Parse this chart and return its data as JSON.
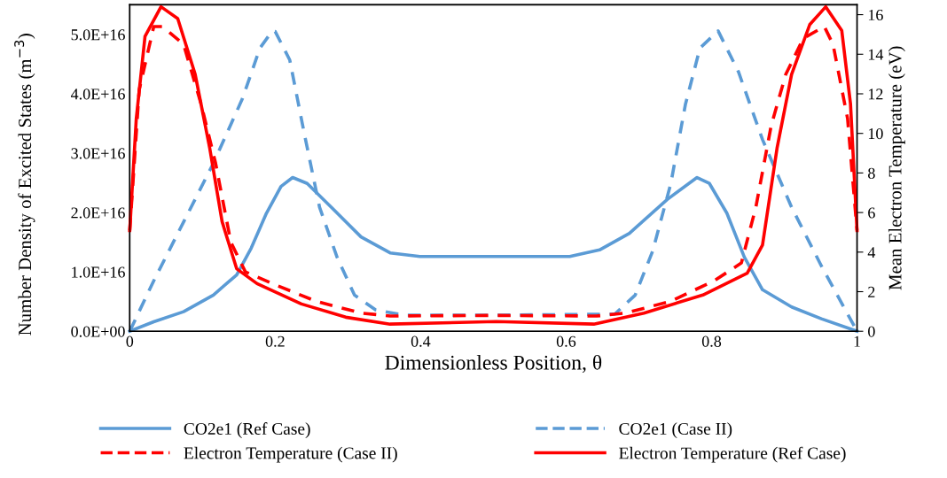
{
  "chart_data": {
    "type": "line",
    "xlabel": "Dimensionless Position, θ",
    "ylabel": "Number Density of Excited States (m$^{−3}$)",
    "y2label": "Mean Electron Temperature (eV)",
    "xlim": [
      0,
      1
    ],
    "xticks": [
      0,
      0.2,
      0.4,
      0.6,
      0.8,
      1
    ],
    "ylim": [
      0,
      5.5e+16
    ],
    "yticks": [
      {
        "value": 0,
        "label": "0.0E+00"
      },
      {
        "value": 1e+16,
        "label": "1.0E+16"
      },
      {
        "value": 2e+16,
        "label": "2.0E+16"
      },
      {
        "value": 3e+16,
        "label": "3.0E+16"
      },
      {
        "value": 4e+16,
        "label": "4.0E+16"
      },
      {
        "value": 5e+16,
        "label": "5.0E+16"
      }
    ],
    "y2lim": [
      0,
      16.5
    ],
    "y2ticks": [
      0,
      2,
      4,
      6,
      8,
      10,
      12,
      14,
      16
    ],
    "grid": false,
    "legend": "bottom",
    "marker": "none",
    "series": [
      {
        "name": "CO2e1 (Ref Case)",
        "color": "#5b9bd5",
        "line_style": "solid",
        "x": [
          0,
          0.033,
          0.074,
          0.115,
          0.147,
          0.167,
          0.188,
          0.208,
          0.224,
          0.244,
          0.277,
          0.318,
          0.358,
          0.399,
          0.504,
          0.605,
          0.646,
          0.687,
          0.739,
          0.78,
          0.797,
          0.821,
          0.845,
          0.87,
          0.91,
          0.951,
          1
        ],
        "values": [
          0,
          1600000000000000.0,
          3300000000000000.0,
          6100000000000000.0,
          9500000000000000.0,
          1.4e+16,
          1.99e+16,
          2.44e+16,
          2.59e+16,
          2.49e+16,
          2.09e+16,
          1.59e+16,
          1.32e+16,
          1.26e+16,
          1.26e+16,
          1.26e+16,
          1.37e+16,
          1.65e+16,
          2.22e+16,
          2.59e+16,
          2.49e+16,
          1.99e+16,
          1.25e+16,
          7000000000000000.0,
          4100000000000000.0,
          2100000000000000.0,
          0
        ]
      },
      {
        "name": "CO2e1 (Case II)",
        "color": "#5b9bd5",
        "line_style": "dashed",
        "x": [
          0,
          0.033,
          0.074,
          0.115,
          0.155,
          0.179,
          0.196,
          0.2,
          0.22,
          0.24,
          0.261,
          0.285,
          0.309,
          0.338,
          0.378,
          0.5,
          0.667,
          0.695,
          0.719,
          0.744,
          0.764,
          0.784,
          0.809,
          0.837,
          0.87,
          0.91,
          0.951,
          1
        ],
        "values": [
          0,
          8500000000000000.0,
          1.84e+16,
          2.83e+16,
          3.92e+16,
          4.77e+16,
          5.06e+16,
          5.05e+16,
          4.57e+16,
          3.33e+16,
          2.09e+16,
          1.25e+16,
          6100000000000000.0,
          3600000000000000.0,
          2700000000000000.0,
          2700000000000000.0,
          2900000000000000.0,
          6100000000000000.0,
          1.35e+16,
          2.49e+16,
          3.82e+16,
          4.77e+16,
          5.06e+16,
          4.37e+16,
          3.23e+16,
          2.09e+16,
          1.1e+16,
          0
        ]
      },
      {
        "name": "Electron Temperature (Case II)",
        "color": "#ff0000",
        "line_style": "dashed",
        "axis": "y2",
        "x": [
          0,
          0.013,
          0.033,
          0.045,
          0.074,
          0.098,
          0.118,
          0.139,
          0.159,
          0.196,
          0.256,
          0.318,
          0.358,
          0.5,
          0.642,
          0.682,
          0.744,
          0.804,
          0.841,
          0.861,
          0.882,
          0.902,
          0.926,
          0.955,
          0.967,
          0.987,
          1
        ],
        "values": [
          5.09,
          12.2,
          15.4,
          15.4,
          14.5,
          11.5,
          8.5,
          4.5,
          3.0,
          2.41,
          1.52,
          0.92,
          0.77,
          0.8,
          0.77,
          0.92,
          1.52,
          2.56,
          3.45,
          6.29,
          10.4,
          12.98,
          14.8,
          15.4,
          14.5,
          10.75,
          5.09
        ]
      },
      {
        "name": "Electron Temperature (Ref Case)",
        "color": "#ff0000",
        "line_style": "solid",
        "axis": "y2",
        "x": [
          0,
          0.009,
          0.021,
          0.043,
          0.066,
          0.09,
          0.11,
          0.127,
          0.147,
          0.175,
          0.236,
          0.297,
          0.358,
          0.504,
          0.638,
          0.707,
          0.788,
          0.849,
          0.87,
          0.89,
          0.91,
          0.935,
          0.957,
          0.979,
          0.991,
          1
        ],
        "values": [
          5.09,
          10.75,
          14.9,
          16.4,
          15.8,
          12.98,
          9.25,
          5.54,
          3.16,
          2.41,
          1.38,
          0.71,
          0.36,
          0.49,
          0.36,
          0.92,
          1.83,
          2.93,
          4.35,
          9.25,
          12.98,
          15.5,
          16.4,
          15.2,
          11.5,
          5.09
        ]
      }
    ]
  }
}
